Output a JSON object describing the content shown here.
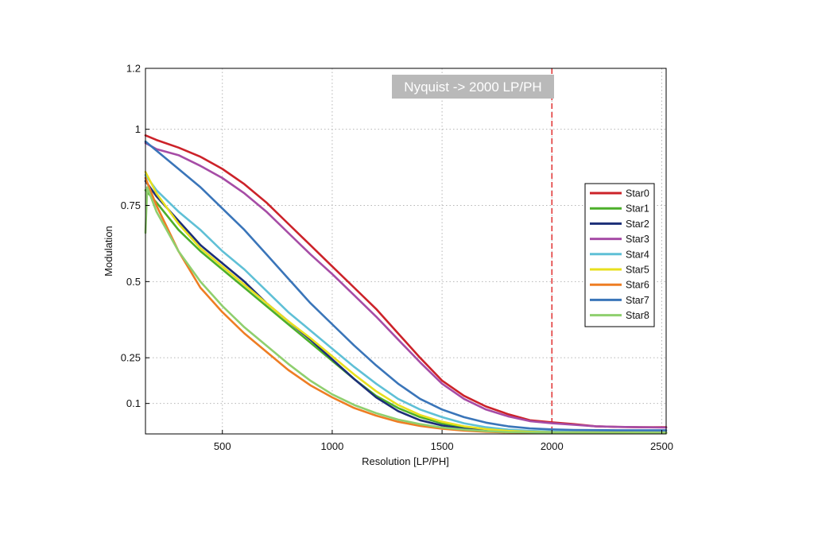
{
  "chart_data": {
    "type": "line",
    "title": "",
    "xlabel": "Resolution [LP/PH]",
    "ylabel": "Modulation",
    "xlim": [
      150,
      2520
    ],
    "ylim": [
      0,
      1.2
    ],
    "x_ticks": [
      500,
      1000,
      1500,
      2000,
      2500
    ],
    "y_ticks": [
      {
        "value": 0.1,
        "label": "0.1"
      },
      {
        "value": 0.25,
        "label": "0.25"
      },
      {
        "value": 0.5,
        "label": "0.5"
      },
      {
        "value": 0.75,
        "label": "0.75"
      },
      {
        "value": 1.0,
        "label": "1"
      },
      {
        "value": 1.2,
        "label": "1.2"
      }
    ],
    "grid": true,
    "legend_position": "right",
    "annotation": {
      "text": "Nyquist -> 2000 LP/PH",
      "x": 2000,
      "line_color": "#e03030",
      "box_color": "#b9b9b9"
    },
    "series": [
      {
        "name": "Star0",
        "color": "#cc2229",
        "points": [
          [
            150,
            0.98
          ],
          [
            200,
            0.965
          ],
          [
            300,
            0.94
          ],
          [
            400,
            0.91
          ],
          [
            500,
            0.87
          ],
          [
            600,
            0.82
          ],
          [
            700,
            0.76
          ],
          [
            800,
            0.69
          ],
          [
            900,
            0.62
          ],
          [
            1000,
            0.55
          ],
          [
            1100,
            0.48
          ],
          [
            1200,
            0.41
          ],
          [
            1300,
            0.33
          ],
          [
            1400,
            0.25
          ],
          [
            1500,
            0.175
          ],
          [
            1600,
            0.125
          ],
          [
            1700,
            0.09
          ],
          [
            1800,
            0.065
          ],
          [
            1900,
            0.045
          ],
          [
            2000,
            0.038
          ],
          [
            2100,
            0.032
          ],
          [
            2200,
            0.025
          ],
          [
            2300,
            0.023
          ],
          [
            2400,
            0.022
          ],
          [
            2520,
            0.022
          ]
        ]
      },
      {
        "name": "Star1",
        "color": "#4caf2a",
        "points": [
          [
            150,
            0.8
          ],
          [
            200,
            0.76
          ],
          [
            300,
            0.67
          ],
          [
            400,
            0.6
          ],
          [
            500,
            0.54
          ],
          [
            600,
            0.48
          ],
          [
            700,
            0.42
          ],
          [
            800,
            0.36
          ],
          [
            900,
            0.3
          ],
          [
            1000,
            0.24
          ],
          [
            1100,
            0.18
          ],
          [
            1200,
            0.125
          ],
          [
            1300,
            0.085
          ],
          [
            1400,
            0.055
          ],
          [
            1500,
            0.035
          ],
          [
            1600,
            0.022
          ],
          [
            1700,
            0.014
          ],
          [
            1800,
            0.008
          ],
          [
            1900,
            0.005
          ],
          [
            2000,
            0.004
          ],
          [
            2200,
            0.003
          ],
          [
            2520,
            0.003
          ]
        ]
      },
      {
        "name": "Star2",
        "color": "#1c2f78",
        "points": [
          [
            150,
            0.83
          ],
          [
            200,
            0.78
          ],
          [
            300,
            0.7
          ],
          [
            400,
            0.62
          ],
          [
            500,
            0.56
          ],
          [
            600,
            0.5
          ],
          [
            700,
            0.43
          ],
          [
            800,
            0.37
          ],
          [
            900,
            0.31
          ],
          [
            1000,
            0.245
          ],
          [
            1100,
            0.18
          ],
          [
            1200,
            0.12
          ],
          [
            1300,
            0.075
          ],
          [
            1400,
            0.045
          ],
          [
            1500,
            0.028
          ],
          [
            1600,
            0.017
          ],
          [
            1700,
            0.011
          ],
          [
            1800,
            0.007
          ],
          [
            2000,
            0.005
          ],
          [
            2520,
            0.004
          ]
        ]
      },
      {
        "name": "Star3",
        "color": "#a64ca6",
        "points": [
          [
            150,
            0.955
          ],
          [
            200,
            0.935
          ],
          [
            300,
            0.915
          ],
          [
            400,
            0.88
          ],
          [
            500,
            0.84
          ],
          [
            600,
            0.79
          ],
          [
            700,
            0.73
          ],
          [
            800,
            0.66
          ],
          [
            900,
            0.59
          ],
          [
            1000,
            0.525
          ],
          [
            1100,
            0.455
          ],
          [
            1200,
            0.385
          ],
          [
            1300,
            0.31
          ],
          [
            1400,
            0.235
          ],
          [
            1500,
            0.165
          ],
          [
            1600,
            0.115
          ],
          [
            1700,
            0.08
          ],
          [
            1800,
            0.058
          ],
          [
            1900,
            0.042
          ],
          [
            2000,
            0.035
          ],
          [
            2100,
            0.03
          ],
          [
            2200,
            0.025
          ],
          [
            2300,
            0.023
          ],
          [
            2400,
            0.022
          ],
          [
            2520,
            0.021
          ]
        ]
      },
      {
        "name": "Star4",
        "color": "#5fc0d6",
        "points": [
          [
            150,
            0.85
          ],
          [
            200,
            0.8
          ],
          [
            300,
            0.73
          ],
          [
            400,
            0.67
          ],
          [
            500,
            0.6
          ],
          [
            600,
            0.54
          ],
          [
            700,
            0.47
          ],
          [
            800,
            0.4
          ],
          [
            900,
            0.34
          ],
          [
            1000,
            0.28
          ],
          [
            1100,
            0.22
          ],
          [
            1200,
            0.165
          ],
          [
            1300,
            0.115
          ],
          [
            1400,
            0.08
          ],
          [
            1500,
            0.055
          ],
          [
            1600,
            0.035
          ],
          [
            1700,
            0.022
          ],
          [
            1800,
            0.014
          ],
          [
            1900,
            0.01
          ],
          [
            2000,
            0.008
          ],
          [
            2520,
            0.006
          ]
        ]
      },
      {
        "name": "Star5",
        "color": "#e8e01e",
        "points": [
          [
            150,
            0.86
          ],
          [
            200,
            0.79
          ],
          [
            300,
            0.69
          ],
          [
            400,
            0.61
          ],
          [
            500,
            0.55
          ],
          [
            600,
            0.49
          ],
          [
            700,
            0.43
          ],
          [
            800,
            0.37
          ],
          [
            900,
            0.315
          ],
          [
            1000,
            0.255
          ],
          [
            1100,
            0.195
          ],
          [
            1200,
            0.14
          ],
          [
            1300,
            0.095
          ],
          [
            1400,
            0.062
          ],
          [
            1500,
            0.04
          ],
          [
            1600,
            0.025
          ],
          [
            1700,
            0.016
          ],
          [
            1800,
            0.01
          ],
          [
            1900,
            0.007
          ],
          [
            2000,
            0.005
          ],
          [
            2520,
            0.004
          ]
        ]
      },
      {
        "name": "Star6",
        "color": "#ee7d23",
        "points": [
          [
            150,
            0.84
          ],
          [
            200,
            0.75
          ],
          [
            300,
            0.6
          ],
          [
            400,
            0.48
          ],
          [
            500,
            0.4
          ],
          [
            600,
            0.33
          ],
          [
            700,
            0.27
          ],
          [
            800,
            0.21
          ],
          [
            900,
            0.16
          ],
          [
            1000,
            0.12
          ],
          [
            1100,
            0.085
          ],
          [
            1200,
            0.06
          ],
          [
            1300,
            0.04
          ],
          [
            1400,
            0.026
          ],
          [
            1500,
            0.017
          ],
          [
            1600,
            0.011
          ],
          [
            1700,
            0.007
          ],
          [
            1800,
            0.005
          ],
          [
            2000,
            0.004
          ],
          [
            2520,
            0.003
          ]
        ]
      },
      {
        "name": "Star7",
        "color": "#3a75b9",
        "points": [
          [
            150,
            0.96
          ],
          [
            200,
            0.93
          ],
          [
            300,
            0.87
          ],
          [
            400,
            0.81
          ],
          [
            500,
            0.74
          ],
          [
            600,
            0.67
          ],
          [
            700,
            0.59
          ],
          [
            800,
            0.51
          ],
          [
            900,
            0.43
          ],
          [
            1000,
            0.36
          ],
          [
            1100,
            0.29
          ],
          [
            1200,
            0.225
          ],
          [
            1300,
            0.165
          ],
          [
            1400,
            0.115
          ],
          [
            1500,
            0.08
          ],
          [
            1600,
            0.055
          ],
          [
            1700,
            0.037
          ],
          [
            1800,
            0.025
          ],
          [
            1900,
            0.018
          ],
          [
            2000,
            0.015
          ],
          [
            2100,
            0.013
          ],
          [
            2300,
            0.012
          ],
          [
            2520,
            0.012
          ]
        ]
      },
      {
        "name": "Star8",
        "color": "#8fcf6e",
        "points": [
          [
            150,
            0.66
          ],
          [
            158,
            0.81
          ],
          [
            200,
            0.73
          ],
          [
            300,
            0.6
          ],
          [
            400,
            0.5
          ],
          [
            500,
            0.42
          ],
          [
            600,
            0.35
          ],
          [
            700,
            0.29
          ],
          [
            800,
            0.23
          ],
          [
            900,
            0.175
          ],
          [
            1000,
            0.13
          ],
          [
            1100,
            0.095
          ],
          [
            1200,
            0.068
          ],
          [
            1300,
            0.047
          ],
          [
            1400,
            0.032
          ],
          [
            1500,
            0.021
          ],
          [
            1600,
            0.014
          ],
          [
            1700,
            0.009
          ],
          [
            1800,
            0.006
          ],
          [
            2000,
            0.004
          ],
          [
            2520,
            0.003
          ]
        ]
      }
    ]
  }
}
